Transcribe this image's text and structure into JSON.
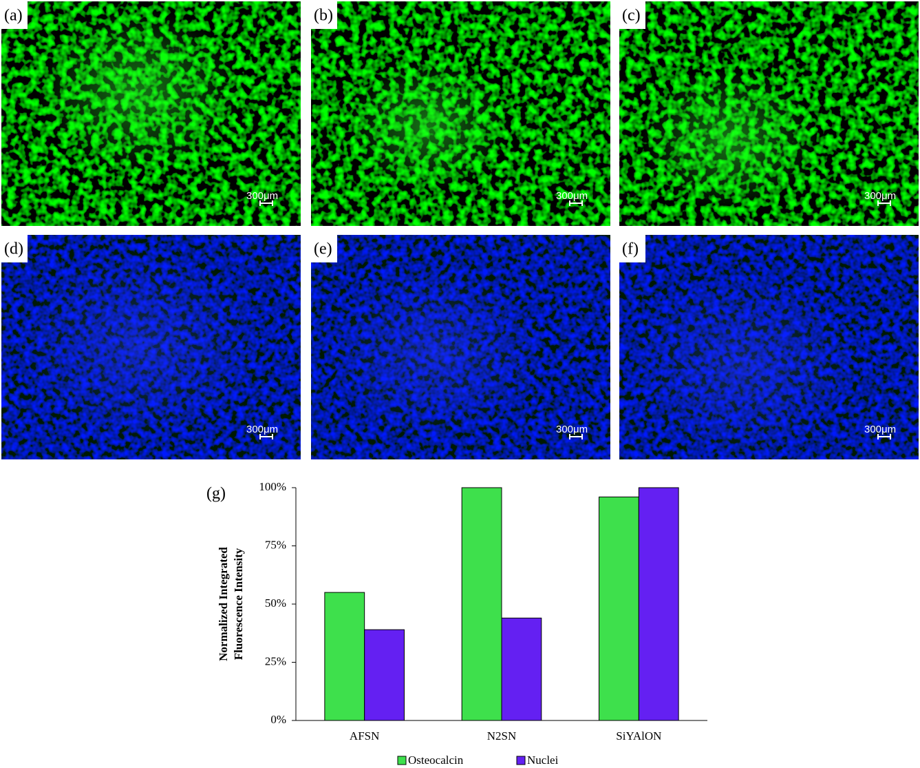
{
  "panels": [
    {
      "label": "(a)",
      "scale": "300μm"
    },
    {
      "label": "(b)",
      "scale": "300μm"
    },
    {
      "label": "(c)",
      "scale": "300μm"
    },
    {
      "label": "(d)",
      "scale": "300μm"
    },
    {
      "label": "(e)",
      "scale": "300μm"
    },
    {
      "label": "(f)",
      "scale": "300μm"
    }
  ],
  "chart_data": {
    "type": "bar",
    "panel_label": "(g)",
    "ylabel": [
      "Normalized Integrated",
      "Fluorescence Intensity"
    ],
    "categories": [
      "AFSN",
      "N2SN",
      "SiYAlON"
    ],
    "series": [
      {
        "name": "Osteocalcin",
        "color": "#3ee04c",
        "values": [
          55,
          100,
          96
        ]
      },
      {
        "name": "Nuclei",
        "color": "#6420f2",
        "values": [
          39,
          44,
          100
        ]
      }
    ],
    "ylim": [
      0,
      100
    ],
    "yticks": [
      {
        "value": 0,
        "label": "0%"
      },
      {
        "value": 25,
        "label": "25%"
      },
      {
        "value": 50,
        "label": "50%"
      },
      {
        "value": 75,
        "label": "75%"
      },
      {
        "value": 100,
        "label": "100%"
      }
    ],
    "legend": "bottom"
  }
}
